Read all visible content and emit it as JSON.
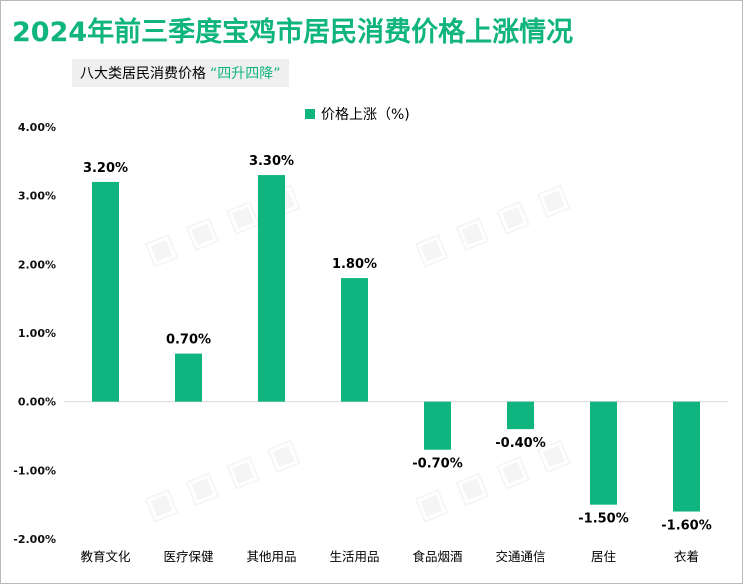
{
  "title": "2024年前三季度宝鸡市居民消费价格上涨情况",
  "subtitle": {
    "text": "八大类居民消费价格",
    "highlight": "“四升四降”"
  },
  "colors": {
    "bar": "#10b47f",
    "title": "#10b47f",
    "axis": "#d9d9d9"
  },
  "chart_data": {
    "type": "bar",
    "categories": [
      "教育文化",
      "医疗保健",
      "其他用品",
      "生活用品",
      "食品烟酒",
      "交通通信",
      "居住",
      "衣着"
    ],
    "series": [
      {
        "name": "价格上涨（%)",
        "values": [
          3.2,
          0.7,
          3.3,
          1.8,
          -0.7,
          -0.4,
          -1.5,
          -1.6
        ],
        "labels": [
          "3.20%",
          "0.70%",
          "3.30%",
          "1.80%",
          "-0.70%",
          "-0.40%",
          "-1.50%",
          "-1.60%"
        ]
      }
    ],
    "ylim": [
      -2.0,
      4.0
    ],
    "yticks": [
      4.0,
      3.0,
      2.0,
      1.0,
      0.0,
      -1.0,
      -2.0
    ],
    "yticklabels": [
      "4.00%",
      "3.00%",
      "2.00%",
      "1.00%",
      "0.00%",
      "-1.00%",
      "-2.00%"
    ],
    "legend": "top-center",
    "grid": false
  }
}
